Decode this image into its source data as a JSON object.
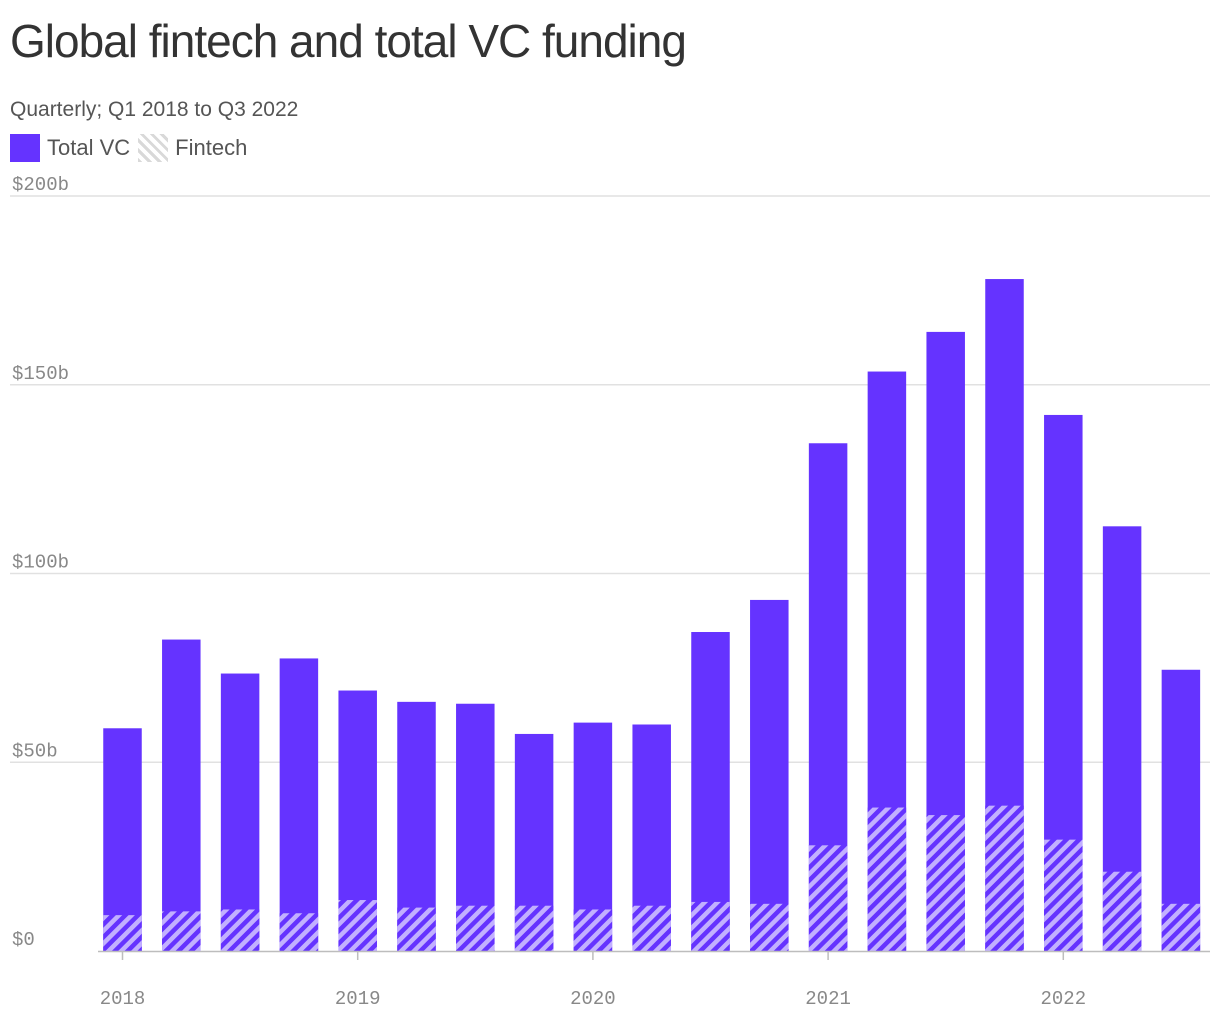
{
  "chart_data": {
    "type": "bar",
    "title": "Global fintech and total VC funding",
    "subtitle": "Quarterly; Q1 2018 to Q3 2022",
    "categories": [
      "Q1 2018",
      "Q2 2018",
      "Q3 2018",
      "Q4 2018",
      "Q1 2019",
      "Q2 2019",
      "Q3 2019",
      "Q4 2019",
      "Q1 2020",
      "Q2 2020",
      "Q3 2020",
      "Q4 2020",
      "Q1 2021",
      "Q2 2021",
      "Q3 2021",
      "Q4 2021",
      "Q1 2022",
      "Q2 2022",
      "Q3 2022"
    ],
    "series": [
      {
        "name": "Total VC",
        "color": "#6533ff",
        "values": [
          59,
          82.5,
          73.5,
          77.5,
          69,
          66,
          65.5,
          57.5,
          60.5,
          60,
          84.5,
          93,
          134.5,
          153.5,
          164,
          178,
          142,
          112.5,
          74.5
        ]
      },
      {
        "name": "Fintech",
        "color": "#9a7dff",
        "pattern": "diagonal-hatch",
        "values": [
          9.5,
          10.5,
          11,
          10,
          13.5,
          11.5,
          12,
          12,
          11,
          12,
          13,
          12.5,
          28,
          38,
          36,
          38.5,
          29.5,
          21,
          12.5
        ]
      }
    ],
    "xticks": [
      "2018",
      "2019",
      "2020",
      "2021",
      "2022"
    ],
    "yticks": [
      0,
      50,
      100,
      150,
      200
    ],
    "ytick_labels": [
      "$0",
      "$50b",
      "$100b",
      "$150b",
      "$200b"
    ],
    "ylim": [
      0,
      200
    ],
    "xlabel": "",
    "ylabel": "",
    "grid": true,
    "legend": "top-left"
  }
}
